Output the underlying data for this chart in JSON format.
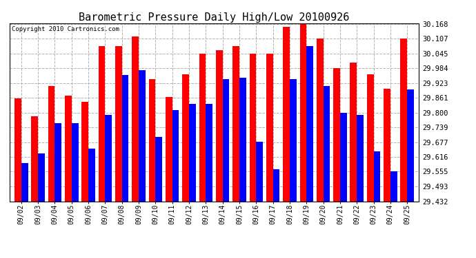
{
  "title": "Barometric Pressure Daily High/Low 20100926",
  "copyright": "Copyright 2010 Cartronics.com",
  "dates": [
    "09/02",
    "09/03",
    "09/04",
    "09/05",
    "09/06",
    "09/07",
    "09/08",
    "09/09",
    "09/10",
    "09/11",
    "09/12",
    "09/13",
    "09/14",
    "09/15",
    "09/16",
    "09/17",
    "09/18",
    "09/19",
    "09/20",
    "09/21",
    "09/22",
    "09/23",
    "09/24",
    "09/25"
  ],
  "highs": [
    29.86,
    29.785,
    29.91,
    29.87,
    29.845,
    30.075,
    30.075,
    30.115,
    29.94,
    29.865,
    29.96,
    30.045,
    30.06,
    30.075,
    30.045,
    30.045,
    30.155,
    30.168,
    30.107,
    29.984,
    30.007,
    29.96,
    29.9,
    30.107
  ],
  "lows": [
    29.59,
    29.63,
    29.755,
    29.755,
    29.65,
    29.79,
    29.955,
    29.975,
    29.7,
    29.81,
    29.836,
    29.836,
    29.94,
    29.945,
    29.68,
    29.565,
    29.94,
    30.075,
    29.91,
    29.8,
    29.79,
    29.64,
    29.555,
    29.895
  ],
  "ymin": 29.432,
  "ymax": 30.168,
  "yticks": [
    30.168,
    30.107,
    30.045,
    29.984,
    29.923,
    29.861,
    29.8,
    29.739,
    29.677,
    29.616,
    29.555,
    29.493,
    29.432
  ],
  "high_color": "#FF0000",
  "low_color": "#0000FF",
  "bg_color": "#FFFFFF",
  "grid_color": "#AAAAAA",
  "bar_width": 0.4,
  "title_fontsize": 11,
  "copyright_fontsize": 6.5,
  "tick_fontsize": 7,
  "ytick_fontsize": 7.5
}
